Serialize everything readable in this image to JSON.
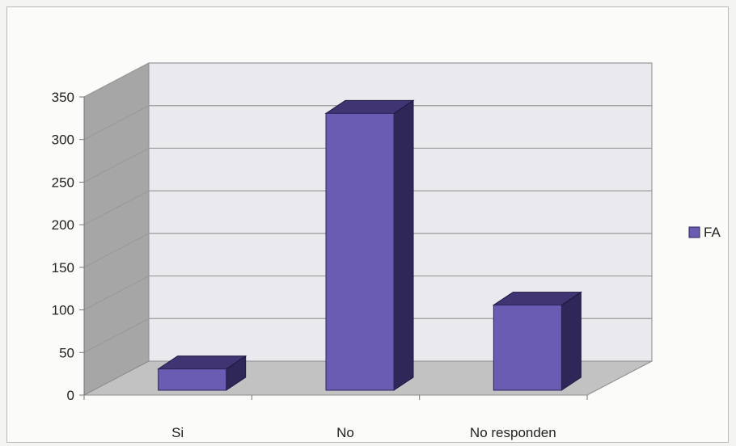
{
  "chart_data": {
    "type": "bar",
    "style": "3d-column",
    "categories": [
      "Si",
      "No",
      "No responden"
    ],
    "series": [
      {
        "name": "FA",
        "values": [
          25,
          325,
          100
        ]
      }
    ],
    "yticks": [
      0,
      50,
      100,
      150,
      200,
      250,
      300,
      350
    ],
    "ylim": [
      0,
      350
    ],
    "grid": true,
    "legend_position": "right",
    "colors": {
      "bar_front": "#6a5cb3",
      "bar_top": "#403572",
      "bar_side": "#2e2758",
      "back_wall": "#e9e9ee",
      "side_wall": "#a6a6a6",
      "floor": "#c2c2c2",
      "grid": "#9a9a9a"
    }
  }
}
